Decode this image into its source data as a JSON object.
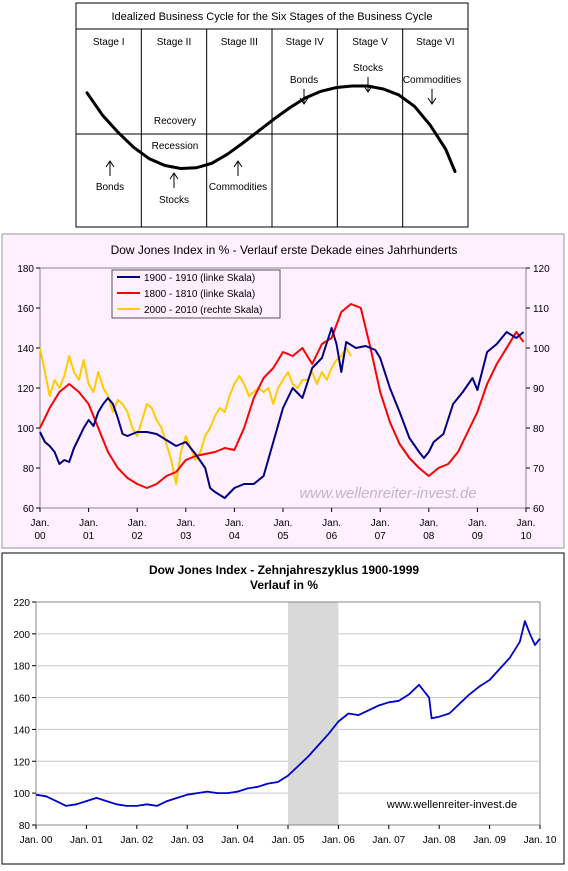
{
  "chart_data": [
    {
      "type": "line",
      "title": "Idealized Business Cycle for the Six Stages of the Business Cycle",
      "stages": [
        "Stage I",
        "Stage II",
        "Stage III",
        "Stage IV",
        "Stage V",
        "Stage VI"
      ],
      "annotations": {
        "recovery": "Recovery",
        "recession": "Recession",
        "bonds_low": "Bonds",
        "stocks_low": "Stocks",
        "commodities_low": "Commodities",
        "bonds_high": "Bonds",
        "stocks_high": "Stocks",
        "commodities_high": "Commodities"
      },
      "curve_shape": "sine",
      "xlim": [
        0,
        6
      ],
      "ylim": [
        -1,
        1
      ],
      "curve": {
        "x": [
          0,
          0.25,
          0.5,
          0.75,
          1,
          1.25,
          1.5,
          1.75,
          2,
          2.25,
          2.5,
          2.75,
          3,
          3.25,
          3.5,
          3.75,
          4,
          4.25,
          4.5,
          4.75,
          5,
          5.25,
          5.5,
          5.75,
          5.9
        ],
        "y": [
          0.55,
          0.25,
          0.02,
          -0.18,
          -0.33,
          -0.42,
          -0.46,
          -0.45,
          -0.39,
          -0.27,
          -0.12,
          0.04,
          0.2,
          0.35,
          0.48,
          0.57,
          0.62,
          0.64,
          0.64,
          0.6,
          0.52,
          0.37,
          0.12,
          -0.2,
          -0.5
        ]
      }
    },
    {
      "type": "line",
      "title": "Dow Jones Index in % - Verlauf erste Dekade eines Jahrhunderts",
      "categories": [
        "Jan. 00",
        "Jan. 01",
        "Jan. 02",
        "Jan. 03",
        "Jan. 04",
        "Jan. 05",
        "Jan. 06",
        "Jan. 07",
        "Jan. 08",
        "Jan. 09",
        "Jan. 10"
      ],
      "category_lines": [
        [
          "Jan.",
          "00"
        ],
        [
          "Jan.",
          "01"
        ],
        [
          "Jan.",
          "02"
        ],
        [
          "Jan.",
          "03"
        ],
        [
          "Jan.",
          "04"
        ],
        [
          "Jan.",
          "05"
        ],
        [
          "Jan.",
          "06"
        ],
        [
          "Jan.",
          "07"
        ],
        [
          "Jan.",
          "08"
        ],
        [
          "Jan.",
          "09"
        ],
        [
          "Jan.",
          "10"
        ]
      ],
      "ylim": [
        60,
        180
      ],
      "y2lim": [
        60,
        120
      ],
      "yticks": [
        "60",
        "80",
        "100",
        "120",
        "140",
        "160",
        "180"
      ],
      "y2ticks": [
        "60",
        "70",
        "80",
        "90",
        "100",
        "110",
        "120"
      ],
      "watermark": "www.wellenreiter-invest.de",
      "legend_position": "top-left",
      "series": [
        {
          "name": "1900 - 1910 (linke Skala)",
          "color": "#000080",
          "axis": "left",
          "x": [
            0,
            0.1,
            0.2,
            0.3,
            0.4,
            0.5,
            0.6,
            0.7,
            0.8,
            0.9,
            1.0,
            1.1,
            1.2,
            1.3,
            1.4,
            1.5,
            1.6,
            1.7,
            1.8,
            1.9,
            2.0,
            2.2,
            2.4,
            2.6,
            2.8,
            3.0,
            3.2,
            3.4,
            3.5,
            3.6,
            3.8,
            4.0,
            4.2,
            4.4,
            4.6,
            4.8,
            5.0,
            5.2,
            5.4,
            5.6,
            5.8,
            6.0,
            6.1,
            6.2,
            6.3,
            6.5,
            6.7,
            6.9,
            7.0,
            7.2,
            7.4,
            7.6,
            7.8,
            7.9,
            8.0,
            8.1,
            8.3,
            8.5,
            8.7,
            8.9,
            9.0,
            9.2,
            9.4,
            9.6,
            9.8,
            9.95
          ],
          "values": [
            98,
            93,
            91,
            88,
            82,
            84,
            83,
            90,
            95,
            100,
            104,
            101,
            108,
            112,
            115,
            112,
            105,
            97,
            96,
            97,
            98,
            98,
            97,
            94,
            91,
            93,
            87,
            80,
            70,
            68,
            65,
            70,
            72,
            72,
            76,
            93,
            110,
            120,
            115,
            130,
            135,
            150,
            142,
            128,
            143,
            140,
            141,
            139,
            135,
            120,
            108,
            95,
            88,
            85,
            88,
            93,
            97,
            112,
            118,
            125,
            119,
            138,
            142,
            148,
            145,
            148
          ]
        },
        {
          "name": "1800 - 1810 (linke Skala)",
          "color": "#ff0000",
          "axis": "left",
          "x": [
            0,
            0.2,
            0.4,
            0.6,
            0.8,
            1.0,
            1.2,
            1.4,
            1.6,
            1.8,
            2.0,
            2.2,
            2.4,
            2.6,
            2.8,
            3.0,
            3.2,
            3.4,
            3.6,
            3.8,
            4.0,
            4.2,
            4.4,
            4.6,
            4.8,
            5.0,
            5.2,
            5.4,
            5.6,
            5.8,
            6.0,
            6.2,
            6.4,
            6.6,
            6.8,
            7.0,
            7.2,
            7.4,
            7.6,
            7.8,
            8.0,
            8.2,
            8.4,
            8.6,
            8.8,
            9.0,
            9.2,
            9.4,
            9.6,
            9.8,
            9.95
          ],
          "values": [
            100,
            110,
            118,
            122,
            118,
            112,
            100,
            88,
            80,
            75,
            72,
            70,
            72,
            76,
            78,
            84,
            86,
            87,
            88,
            90,
            89,
            100,
            115,
            125,
            130,
            138,
            136,
            140,
            132,
            142,
            145,
            158,
            162,
            160,
            140,
            118,
            103,
            92,
            85,
            80,
            76,
            80,
            82,
            88,
            98,
            108,
            122,
            132,
            140,
            148,
            143
          ]
        },
        {
          "name": "2000 - 2010 (rechte Skala)",
          "color": "#ffcc00",
          "axis": "right",
          "x": [
            0,
            0.1,
            0.2,
            0.3,
            0.4,
            0.5,
            0.6,
            0.7,
            0.8,
            0.9,
            1.0,
            1.1,
            1.2,
            1.3,
            1.4,
            1.5,
            1.6,
            1.7,
            1.8,
            1.9,
            2.0,
            2.1,
            2.2,
            2.3,
            2.4,
            2.5,
            2.6,
            2.7,
            2.8,
            2.9,
            3.0,
            3.1,
            3.2,
            3.3,
            3.4,
            3.5,
            3.6,
            3.7,
            3.8,
            3.9,
            4.0,
            4.1,
            4.2,
            4.3,
            4.4,
            4.5,
            4.6,
            4.7,
            4.8,
            4.9,
            5.0,
            5.1,
            5.2,
            5.3,
            5.4,
            5.5,
            5.6,
            5.7,
            5.8,
            5.9,
            6.0,
            6.1,
            6.2,
            6.3,
            6.4
          ],
          "values": [
            100,
            94,
            88,
            92,
            90,
            93,
            98,
            94,
            92,
            97,
            91,
            89,
            94,
            90,
            88,
            84,
            87,
            86,
            84,
            80,
            78,
            82,
            86,
            85,
            82,
            80,
            76,
            72,
            66,
            74,
            78,
            75,
            72,
            74,
            78,
            80,
            83,
            85,
            84,
            88,
            91,
            93,
            91,
            88,
            89,
            90,
            89,
            90,
            86,
            90,
            92,
            94,
            91,
            90,
            92,
            92,
            94,
            91,
            94,
            92,
            95,
            97,
            98,
            100,
            98
          ]
        }
      ]
    },
    {
      "type": "line",
      "title": "Dow Jones Index - Zehnjahreszyklus 1900-1999",
      "subtitle": "Verlauf in %",
      "categories": [
        "Jan. 00",
        "Jan. 01",
        "Jan. 02",
        "Jan. 03",
        "Jan. 04",
        "Jan. 05",
        "Jan. 06",
        "Jan. 07",
        "Jan. 08",
        "Jan. 09",
        "Jan. 10"
      ],
      "ylim": [
        80,
        220
      ],
      "yticks": [
        "80",
        "100",
        "120",
        "140",
        "160",
        "180",
        "200",
        "220"
      ],
      "highlight_range": [
        5,
        6
      ],
      "watermark": "www.wellenreiter-invest.de",
      "grid": "horizontal",
      "series": [
        {
          "color": "#0000cc",
          "x": [
            0,
            0.2,
            0.4,
            0.6,
            0.8,
            1.0,
            1.2,
            1.4,
            1.6,
            1.8,
            2.0,
            2.2,
            2.4,
            2.6,
            2.8,
            3.0,
            3.2,
            3.4,
            3.6,
            3.8,
            4.0,
            4.2,
            4.4,
            4.6,
            4.8,
            5.0,
            5.2,
            5.4,
            5.6,
            5.8,
            6.0,
            6.2,
            6.4,
            6.6,
            6.8,
            7.0,
            7.2,
            7.4,
            7.6,
            7.8,
            7.85,
            8.0,
            8.2,
            8.4,
            8.6,
            8.8,
            9.0,
            9.2,
            9.4,
            9.6,
            9.7,
            9.8,
            9.9,
            10.0
          ],
          "values": [
            99,
            98,
            95,
            92,
            93,
            95,
            97,
            95,
            93,
            92,
            92,
            93,
            92,
            95,
            97,
            99,
            100,
            101,
            100,
            100,
            101,
            103,
            104,
            106,
            107,
            111,
            117,
            123,
            130,
            137,
            145,
            150,
            149,
            152,
            155,
            157,
            158,
            162,
            168,
            160,
            147,
            148,
            150,
            156,
            162,
            167,
            171,
            178,
            185,
            195,
            208,
            200,
            193,
            197
          ]
        }
      ]
    }
  ]
}
